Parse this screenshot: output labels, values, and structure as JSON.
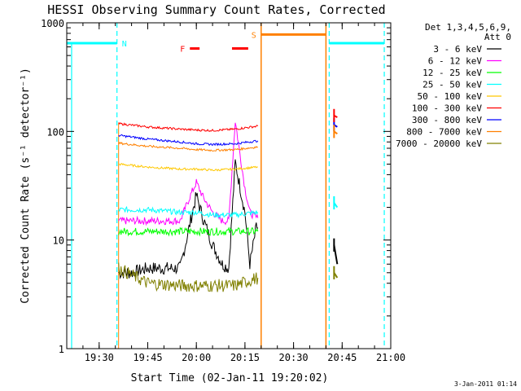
{
  "chart_data": {
    "type": "line",
    "title": "HESSI Observing Summary Count Rates, Corrected",
    "xlabel": "Start Time (02-Jan-11 19:20:02)",
    "ylabel": "Corrected Count Rate (s⁻¹ detector⁻¹)",
    "ylim": [
      1,
      1000
    ],
    "yscale": "log",
    "x_unit": "minutes of day (UT)",
    "xlim": [
      1160,
      1260
    ],
    "x_ticks": [
      {
        "label": "19:30",
        "value": 1170
      },
      {
        "label": "19:45",
        "value": 1185
      },
      {
        "label": "20:00",
        "value": 1200
      },
      {
        "label": "20:15",
        "value": 1215
      },
      {
        "label": "20:30",
        "value": 1230
      },
      {
        "label": "20:45",
        "value": 1245
      },
      {
        "label": "21:00",
        "value": 1260
      }
    ],
    "y_ticks": [
      {
        "label": "1",
        "value": 1
      },
      {
        "label": "10",
        "value": 10
      },
      {
        "label": "100",
        "value": 100
      },
      {
        "label": "1000",
        "value": 1000
      }
    ],
    "legend_header": [
      "Det 1,3,4,5,6,9,",
      "Att 0"
    ],
    "legend_position": "top-right",
    "footer_date": "3-Jan-2011 01:14",
    "series": [
      {
        "name": "3 - 6 keV",
        "color": "#000000",
        "x": [
          1176,
          1180,
          1185,
          1190,
          1195,
          1198,
          1200,
          1202,
          1205,
          1208,
          1210,
          1212,
          1215,
          1216.5,
          1218.5,
          1219
        ],
        "values": [
          5,
          5,
          5.5,
          5.5,
          5.5,
          14,
          26,
          16,
          9,
          6,
          5.5,
          52,
          18,
          6,
          13,
          13
        ]
      },
      {
        "name": "6 - 12 keV",
        "color": "#ff00ff",
        "x": [
          1176,
          1180,
          1185,
          1190,
          1195,
          1198,
          1200,
          1202,
          1205,
          1208,
          1210,
          1212,
          1215,
          1216.5,
          1218.5,
          1219
        ],
        "values": [
          15,
          15,
          15,
          15,
          15,
          25,
          34,
          25,
          18,
          15,
          15,
          125,
          30,
          18,
          16,
          16
        ]
      },
      {
        "name": "12 - 25 keV",
        "color": "#00ff00",
        "x": [
          1176,
          1185,
          1195,
          1200,
          1205,
          1212,
          1219
        ],
        "values": [
          12,
          12,
          12,
          12,
          12,
          12,
          12
        ]
      },
      {
        "name": "25 - 50 keV",
        "color": "#00ffff",
        "x": [
          1176,
          1185,
          1195,
          1200,
          1205,
          1212,
          1219
        ],
        "values": [
          19,
          19,
          18,
          18,
          17,
          17,
          18
        ]
      },
      {
        "name": "50 - 100 keV",
        "color": "#ffc800",
        "x": [
          1176,
          1185,
          1195,
          1200,
          1205,
          1212,
          1219
        ],
        "values": [
          50,
          47,
          45,
          45,
          44,
          45,
          47
        ]
      },
      {
        "name": "100 - 300 keV",
        "color": "#ff0000",
        "x": [
          1176,
          1185,
          1195,
          1200,
          1205,
          1212,
          1219
        ],
        "values": [
          118,
          110,
          105,
          103,
          102,
          105,
          112
        ]
      },
      {
        "name": "300 - 800 keV",
        "color": "#0000ff",
        "x": [
          1176,
          1185,
          1195,
          1200,
          1205,
          1212,
          1219
        ],
        "values": [
          92,
          85,
          80,
          77,
          76,
          77,
          82
        ]
      },
      {
        "name": "800 - 7000 keV",
        "color": "#ff8000",
        "x": [
          1176,
          1185,
          1195,
          1200,
          1205,
          1212,
          1219
        ],
        "values": [
          78,
          73,
          70,
          68,
          67,
          68,
          72
        ]
      },
      {
        "name": "7000 - 20000 keV",
        "color": "#808000",
        "x": [
          1176,
          1185,
          1195,
          1200,
          1205,
          1212,
          1219
        ],
        "values": [
          5.5,
          4,
          3.8,
          3.8,
          3.8,
          3.8,
          4.5
        ]
      }
    ],
    "late_segment": {
      "x": [
        1242.5,
        1243.5
      ],
      "values": {
        "3 - 6 keV": [
          9,
          6
        ],
        "25 - 50 keV": [
          22,
          20
        ],
        "300 - 800 keV": [
          115,
          110
        ],
        "100 - 300 keV": [
          140,
          135
        ],
        "800 - 7000 keV": [
          100,
          95
        ],
        "7000 - 20000 keV": [
          5,
          4.5
        ]
      }
    },
    "flags": [
      {
        "label": "N",
        "color": "#00ffff",
        "value": 650,
        "segments": [
          [
            1160,
            1175.5
          ],
          [
            1241,
            1258
          ]
        ],
        "boundaries": [
          1175.5,
          1241,
          1258
        ]
      },
      {
        "label": "F",
        "color": "#ff0000",
        "value": 580,
        "segments": [
          [
            1198,
            1201
          ],
          [
            1211,
            1216
          ]
        ]
      },
      {
        "label": "S",
        "color": "#ff8000",
        "value": 780,
        "segments": [
          [
            1220,
            1240
          ]
        ],
        "boundaries": [
          1220,
          1240
        ]
      }
    ]
  }
}
